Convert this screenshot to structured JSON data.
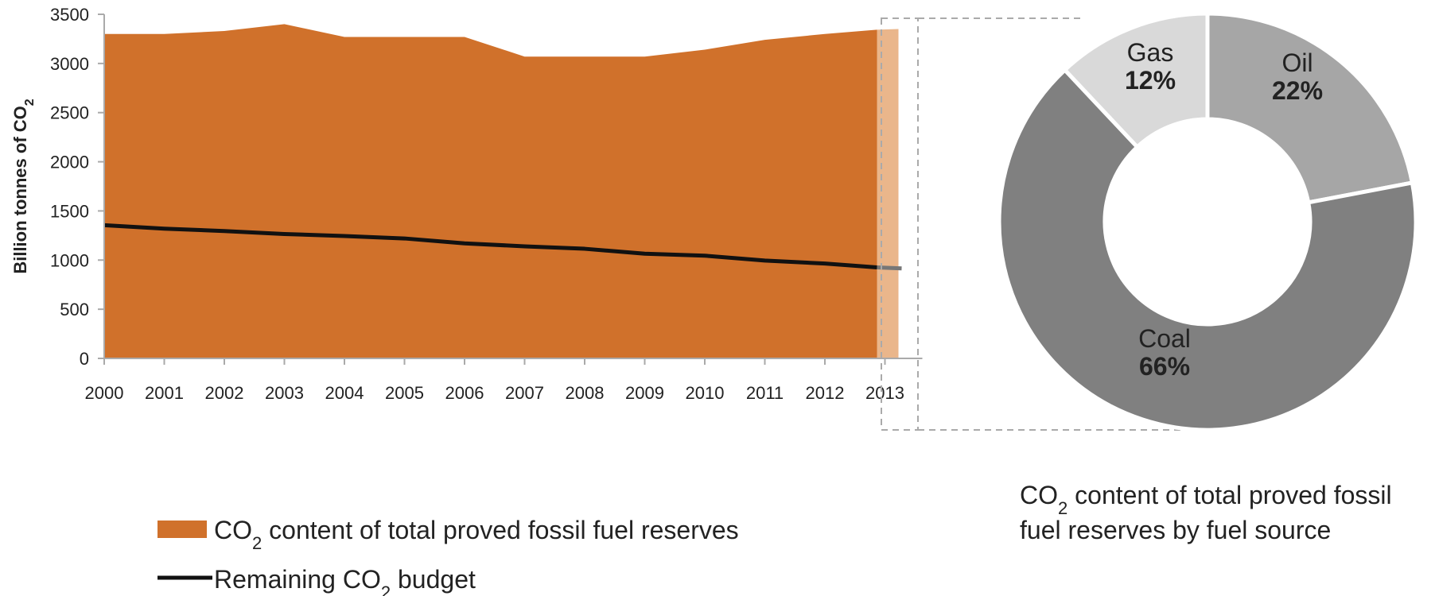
{
  "chart_data": [
    {
      "type": "area",
      "xlabel": "",
      "ylabel": "Billion tonnes of CO2",
      "ylim": [
        0,
        3500
      ],
      "yticks": [
        "0",
        "500",
        "1000",
        "1500",
        "2000",
        "2500",
        "3000",
        "3500"
      ],
      "x": [
        "2000",
        "2001",
        "2002",
        "2003",
        "2004",
        "2005",
        "2006",
        "2007",
        "2008",
        "2009",
        "2010",
        "2011",
        "2012",
        "2013"
      ],
      "grid": false,
      "legend_position": "bottom-left",
      "highlight_category": "2013",
      "series": [
        {
          "name": "CO2 content of total proved fossil fuel reserves",
          "kind": "area",
          "color": "#d0712b",
          "highlight_color": "#eab68b",
          "values": [
            3300,
            3300,
            3330,
            3400,
            3270,
            3270,
            3270,
            3070,
            3070,
            3070,
            3140,
            3240,
            3300,
            3350
          ]
        },
        {
          "name": "Remaining CO2 budget",
          "kind": "line",
          "color": "#111111",
          "highlight_color": "#777777",
          "values": [
            1355,
            1320,
            1295,
            1265,
            1245,
            1220,
            1170,
            1140,
            1115,
            1065,
            1045,
            995,
            965,
            920
          ]
        }
      ]
    },
    {
      "type": "pie",
      "donut": true,
      "title": "CO2 content of total proved fossil fuel reserves by fuel source",
      "slices": [
        {
          "label": "Oil",
          "value": 22,
          "pct_label": "22%",
          "color": "#a6a6a6"
        },
        {
          "label": "Coal",
          "value": 66,
          "pct_label": "66%",
          "color": "#808080"
        },
        {
          "label": "Gas",
          "value": 12,
          "pct_label": "12%",
          "color": "#d9d9d9"
        }
      ]
    }
  ]
}
